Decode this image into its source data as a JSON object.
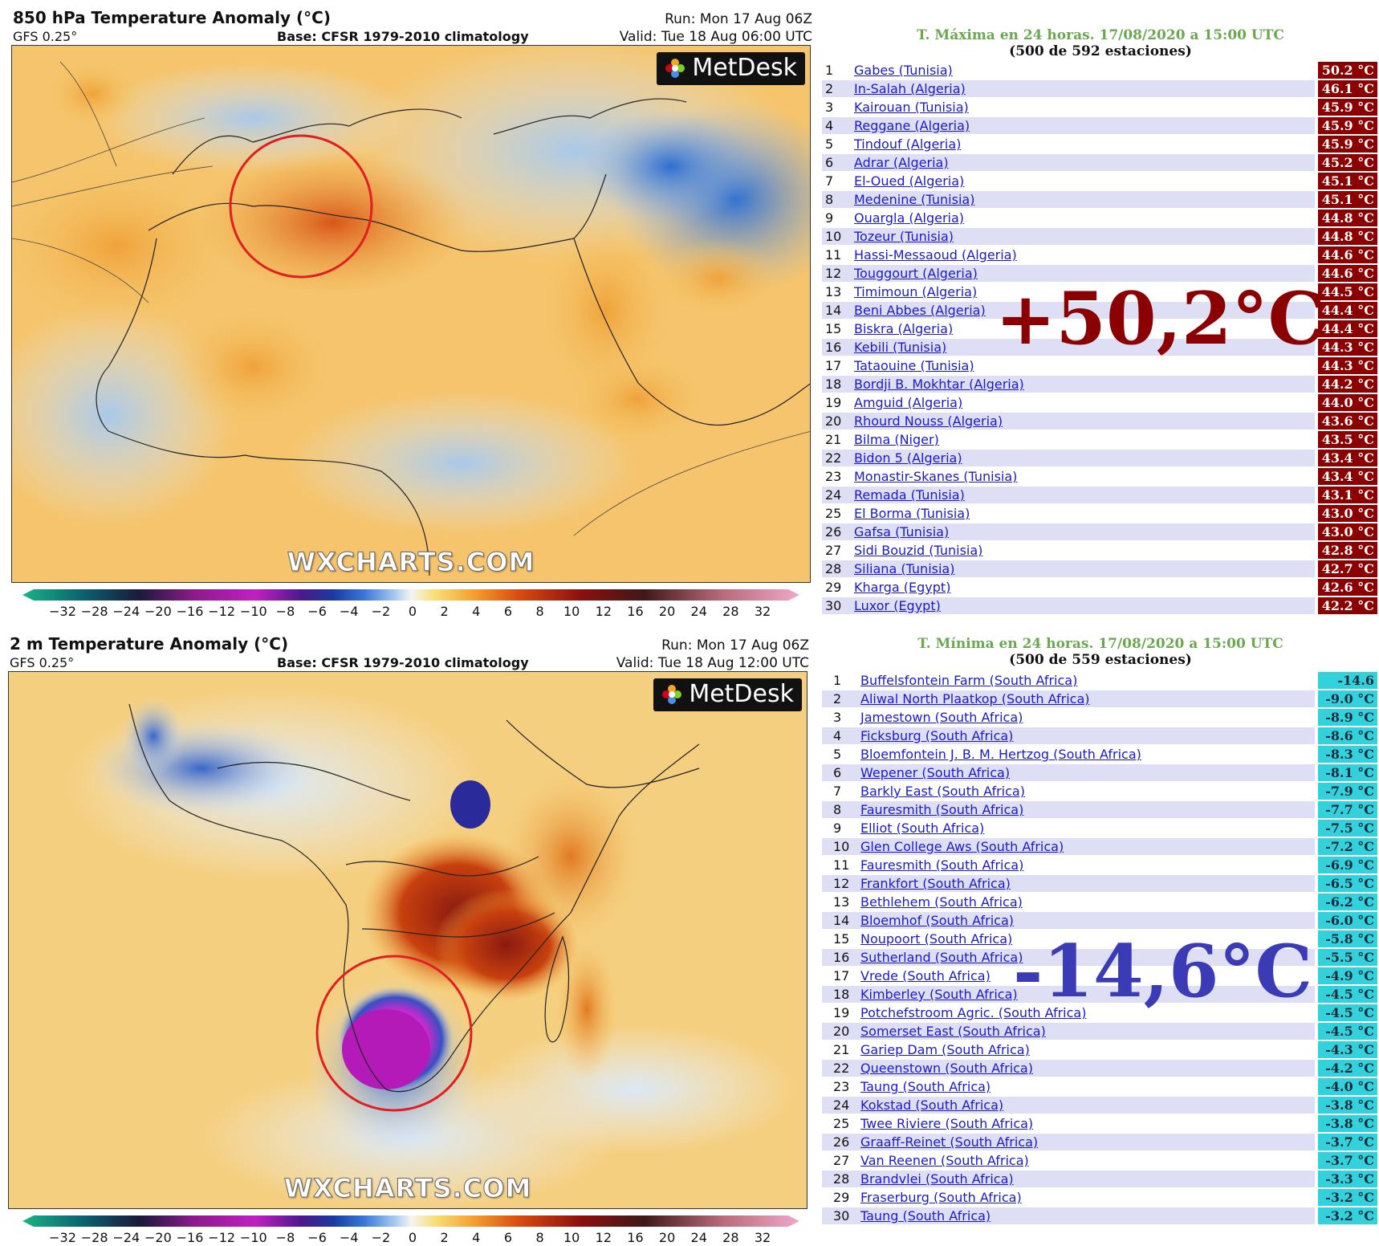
{
  "map_top": {
    "title": "850 hPa Temperature Anomaly (°C)",
    "model": "GFS 0.25°",
    "base": "Base: CFSR 1979-2010 climatology",
    "run": "Run: Mon 17 Aug 06Z",
    "valid": "Valid: Tue 18 Aug 06:00 UTC",
    "logo": "MetDesk",
    "watermark": "WXCHARTS.COM"
  },
  "map_bottom": {
    "title": "2 m Temperature Anomaly (°C)",
    "model": "GFS 0.25°",
    "base": "Base: CFSR 1979-2010 climatology",
    "run": "Run: Mon 17 Aug 06Z",
    "valid": "Valid: Tue 18 Aug 12:00 UTC",
    "logo": "MetDesk",
    "watermark": "WXCHARTS.COM"
  },
  "colorbar_ticks": [
    "−32",
    "−28",
    "−24",
    "−20",
    "−16",
    "−12",
    "−10",
    "−8",
    "−6",
    "−4",
    "−2",
    "0",
    "2",
    "4",
    "6",
    "8",
    "10",
    "12",
    "16",
    "20",
    "24",
    "28",
    "32"
  ],
  "colors": {
    "max_badge": "#8b0000",
    "min_badge": "#33d1dc",
    "circle": "#e02020",
    "list_title": "#6aa84f"
  },
  "max_list": {
    "title": "T. Máxima en 24 horas. 17/08/2020 a 15:00 UTC",
    "subtitle": "(500 de 592 estaciones)",
    "highlight": "+50,2°C",
    "rows": [
      {
        "rank": "1",
        "station": "Gabes (Tunisia)",
        "temp": "50.2 °C"
      },
      {
        "rank": "2",
        "station": "In-Salah (Algeria)",
        "temp": "46.1 °C"
      },
      {
        "rank": "3",
        "station": "Kairouan (Tunisia)",
        "temp": "45.9 °C"
      },
      {
        "rank": "4",
        "station": "Reggane (Algeria)",
        "temp": "45.9 °C"
      },
      {
        "rank": "5",
        "station": "Tindouf (Algeria)",
        "temp": "45.9 °C"
      },
      {
        "rank": "6",
        "station": "Adrar (Algeria)",
        "temp": "45.2 °C"
      },
      {
        "rank": "7",
        "station": "El-Oued (Algeria)",
        "temp": "45.1 °C"
      },
      {
        "rank": "8",
        "station": "Medenine (Tunisia)",
        "temp": "45.1 °C"
      },
      {
        "rank": "9",
        "station": "Ouargla (Algeria)",
        "temp": "44.8 °C"
      },
      {
        "rank": "10",
        "station": "Tozeur (Tunisia)",
        "temp": "44.8 °C"
      },
      {
        "rank": "11",
        "station": "Hassi-Messaoud (Algeria)",
        "temp": "44.6 °C"
      },
      {
        "rank": "12",
        "station": "Touggourt (Algeria)",
        "temp": "44.6 °C"
      },
      {
        "rank": "13",
        "station": "Timimoun (Algeria)",
        "temp": "44.5 °C"
      },
      {
        "rank": "14",
        "station": "Beni Abbes (Algeria)",
        "temp": "44.4 °C"
      },
      {
        "rank": "15",
        "station": "Biskra (Algeria)",
        "temp": "44.4 °C"
      },
      {
        "rank": "16",
        "station": "Kebili (Tunisia)",
        "temp": "44.3 °C"
      },
      {
        "rank": "17",
        "station": "Tataouine (Tunisia)",
        "temp": "44.3 °C"
      },
      {
        "rank": "18",
        "station": "Bordji B. Mokhtar (Algeria)",
        "temp": "44.2 °C"
      },
      {
        "rank": "19",
        "station": "Amguid (Algeria)",
        "temp": "44.0 °C"
      },
      {
        "rank": "20",
        "station": "Rhourd Nouss (Algeria)",
        "temp": "43.6 °C"
      },
      {
        "rank": "21",
        "station": "Bilma (Niger)",
        "temp": "43.5 °C"
      },
      {
        "rank": "22",
        "station": "Bidon 5 (Algeria)",
        "temp": "43.4 °C"
      },
      {
        "rank": "23",
        "station": "Monastir-Skanes (Tunisia)",
        "temp": "43.4 °C"
      },
      {
        "rank": "24",
        "station": "Remada (Tunisia)",
        "temp": "43.1 °C"
      },
      {
        "rank": "25",
        "station": "El Borma (Tunisia)",
        "temp": "43.0 °C"
      },
      {
        "rank": "26",
        "station": "Gafsa (Tunisia)",
        "temp": "43.0 °C"
      },
      {
        "rank": "27",
        "station": "Sidi Bouzid (Tunisia)",
        "temp": "42.8 °C"
      },
      {
        "rank": "28",
        "station": "Siliana (Tunisia)",
        "temp": "42.7 °C"
      },
      {
        "rank": "29",
        "station": "Kharga (Egypt)",
        "temp": "42.6 °C"
      },
      {
        "rank": "30",
        "station": "Luxor (Egypt)",
        "temp": "42.2 °C"
      }
    ]
  },
  "min_list": {
    "title": "T. Mínima en 24 horas. 17/08/2020 a 15:00 UTC",
    "subtitle": "(500 de 559 estaciones)",
    "highlight": "-14,6°C",
    "rows": [
      {
        "rank": "1",
        "station": "Buffelsfontein Farm (South Africa)",
        "temp": "-14.6 °C"
      },
      {
        "rank": "2",
        "station": "Aliwal North Plaatkop (South Africa)",
        "temp": "-9.0 °C"
      },
      {
        "rank": "3",
        "station": "Jamestown (South Africa)",
        "temp": "-8.9 °C"
      },
      {
        "rank": "4",
        "station": "Ficksburg (South Africa)",
        "temp": "-8.6 °C"
      },
      {
        "rank": "5",
        "station": "Bloemfontein J. B. M. Hertzog (South Africa)",
        "temp": "-8.3 °C"
      },
      {
        "rank": "6",
        "station": "Wepener (South Africa)",
        "temp": "-8.1 °C"
      },
      {
        "rank": "7",
        "station": "Barkly East (South Africa)",
        "temp": "-7.9 °C"
      },
      {
        "rank": "8",
        "station": "Fauresmith (South Africa)",
        "temp": "-7.7 °C"
      },
      {
        "rank": "9",
        "station": "Elliot (South Africa)",
        "temp": "-7.5 °C"
      },
      {
        "rank": "10",
        "station": "Glen College Aws (South Africa)",
        "temp": "-7.2 °C"
      },
      {
        "rank": "11",
        "station": "Fauresmith (South Africa)",
        "temp": "-6.9 °C"
      },
      {
        "rank": "12",
        "station": "Frankfort (South Africa)",
        "temp": "-6.5 °C"
      },
      {
        "rank": "13",
        "station": "Bethlehem (South Africa)",
        "temp": "-6.2 °C"
      },
      {
        "rank": "14",
        "station": "Bloemhof (South Africa)",
        "temp": "-6.0 °C"
      },
      {
        "rank": "15",
        "station": "Noupoort (South Africa)",
        "temp": "-5.8 °C"
      },
      {
        "rank": "16",
        "station": "Sutherland (South Africa)",
        "temp": "-5.5 °C"
      },
      {
        "rank": "17",
        "station": "Vrede (South Africa)",
        "temp": "-4.9 °C"
      },
      {
        "rank": "18",
        "station": "Kimberley (South Africa)",
        "temp": "-4.5 °C"
      },
      {
        "rank": "19",
        "station": "Potchefstroom Agric. (South Africa)",
        "temp": "-4.5 °C"
      },
      {
        "rank": "20",
        "station": "Somerset East (South Africa)",
        "temp": "-4.5 °C"
      },
      {
        "rank": "21",
        "station": "Gariep Dam (South Africa)",
        "temp": "-4.3 °C"
      },
      {
        "rank": "22",
        "station": "Queenstown (South Africa)",
        "temp": "-4.2 °C"
      },
      {
        "rank": "23",
        "station": "Taung (South Africa)",
        "temp": "-4.0 °C"
      },
      {
        "rank": "24",
        "station": "Kokstad (South Africa)",
        "temp": "-3.8 °C"
      },
      {
        "rank": "25",
        "station": "Twee Riviere (South Africa)",
        "temp": "-3.8 °C"
      },
      {
        "rank": "26",
        "station": "Graaff-Reinet (South Africa)",
        "temp": "-3.7 °C"
      },
      {
        "rank": "27",
        "station": "Van Reenen (South Africa)",
        "temp": "-3.7 °C"
      },
      {
        "rank": "28",
        "station": "Brandvlei (South Africa)",
        "temp": "-3.3 °C"
      },
      {
        "rank": "29",
        "station": "Fraserburg (South Africa)",
        "temp": "-3.2 °C"
      },
      {
        "rank": "30",
        "station": "Taung (South Africa)",
        "temp": "-3.2 °C"
      }
    ]
  }
}
